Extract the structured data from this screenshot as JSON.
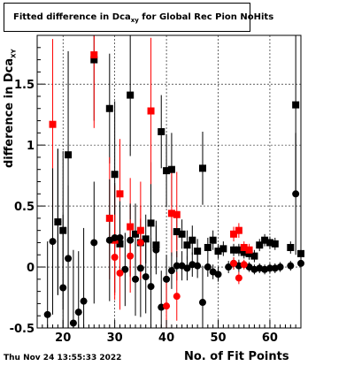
{
  "title": {
    "prefix": "Fitted difference in Dca",
    "sub": "xy",
    "suffix": " for Global Rec Pion NoHits"
  },
  "footer": "Thu Nov 24 13:55:33 2022",
  "colors": {
    "black": "#000000",
    "red": "#ff0000"
  },
  "chart_data": {
    "type": "scatter",
    "title": "Fitted difference in Dca xy for Global Rec Pion NoHits",
    "xlabel": "No. of Fit Points",
    "ylabel_prefix": "difference in Dca",
    "ylabel_sub": "XY",
    "xlim": [
      15,
      66
    ],
    "ylim": [
      -0.5,
      1.9
    ],
    "xticks": [
      20,
      30,
      40,
      50,
      60
    ],
    "yticks": [
      -0.5,
      0,
      0.5,
      1,
      1.5
    ],
    "xtick_labels": [
      "20",
      "30",
      "40",
      "50",
      "60"
    ],
    "ytick_labels": [
      "-0.5",
      "0",
      "0.5",
      "1",
      "1.5"
    ],
    "grid": true,
    "series": [
      {
        "color": "#000000",
        "marker": "square",
        "points": [
          [
            19,
            0.37
          ],
          [
            20,
            0.3
          ],
          [
            21,
            0.92
          ],
          [
            26,
            1.7
          ],
          [
            29,
            1.3
          ],
          [
            30,
            0.76
          ],
          [
            31,
            0.19
          ],
          [
            33,
            1.41
          ],
          [
            34,
            0.27
          ],
          [
            35,
            0.2
          ],
          [
            36,
            0.23
          ],
          [
            37,
            0.36
          ],
          [
            38,
            0.18
          ],
          [
            39,
            1.11
          ],
          [
            40,
            0.79
          ],
          [
            41,
            0.8
          ],
          [
            42,
            0.29
          ],
          [
            43,
            0.27
          ],
          [
            44,
            0.18
          ],
          [
            45,
            0.22
          ],
          [
            46,
            0.13
          ],
          [
            47,
            0.81
          ],
          [
            48,
            0.16
          ],
          [
            49,
            0.22
          ],
          [
            50,
            0.13
          ],
          [
            51,
            0.15
          ],
          [
            53,
            0.14
          ],
          [
            54,
            0.14
          ],
          [
            55,
            0.12
          ],
          [
            56,
            0.11
          ],
          [
            57,
            0.09
          ],
          [
            58,
            0.18
          ],
          [
            59,
            0.22
          ],
          [
            60,
            0.2
          ],
          [
            61,
            0.19
          ],
          [
            64,
            0.16
          ],
          [
            65,
            1.33
          ],
          [
            66,
            0.11
          ]
        ],
        "errors": [
          [
            19,
            0.6
          ],
          [
            20,
            0.65
          ],
          [
            21,
            0.85
          ],
          [
            26,
            0.5
          ],
          [
            29,
            0.45
          ],
          [
            30,
            0.6
          ],
          [
            31,
            0.25
          ],
          [
            33,
            0.5
          ],
          [
            34,
            0.25
          ],
          [
            35,
            0.2
          ],
          [
            36,
            0.2
          ],
          [
            37,
            0.5
          ],
          [
            38,
            0.2
          ],
          [
            39,
            0.3
          ],
          [
            40,
            0.3
          ],
          [
            41,
            0.3
          ],
          [
            42,
            0.15
          ],
          [
            43,
            0.12
          ],
          [
            44,
            0.12
          ],
          [
            45,
            0.12
          ],
          [
            46,
            0.1
          ],
          [
            47,
            0.3
          ],
          [
            48,
            0.08
          ],
          [
            49,
            0.08
          ],
          [
            50,
            0.06
          ],
          [
            51,
            0.06
          ],
          [
            53,
            0.05
          ],
          [
            54,
            0.05
          ],
          [
            55,
            0.05
          ],
          [
            56,
            0.05
          ],
          [
            57,
            0.05
          ],
          [
            58,
            0.05
          ],
          [
            59,
            0.05
          ],
          [
            60,
            0.05
          ],
          [
            61,
            0.05
          ],
          [
            64,
            0.05
          ],
          [
            65,
            0.7
          ],
          [
            66,
            0.05
          ]
        ]
      },
      {
        "color": "#ff0000",
        "marker": "square",
        "points": [
          [
            18,
            1.17
          ],
          [
            26,
            1.74
          ],
          [
            29,
            0.4
          ],
          [
            30,
            0.22
          ],
          [
            31,
            0.6
          ],
          [
            33,
            0.33
          ],
          [
            35,
            0.3
          ],
          [
            37,
            1.28
          ],
          [
            41,
            0.44
          ],
          [
            42,
            0.43
          ],
          [
            53,
            0.27
          ],
          [
            54,
            0.3
          ],
          [
            55,
            0.16
          ],
          [
            56,
            0.14
          ]
        ],
        "errors": [
          [
            18,
            0.7
          ],
          [
            26,
            0.6
          ],
          [
            29,
            0.5
          ],
          [
            30,
            0.45
          ],
          [
            31,
            0.45
          ],
          [
            33,
            0.4
          ],
          [
            35,
            0.4
          ],
          [
            37,
            0.6
          ],
          [
            41,
            0.35
          ],
          [
            42,
            0.35
          ],
          [
            53,
            0.06
          ],
          [
            54,
            0.06
          ],
          [
            55,
            0.05
          ],
          [
            56,
            0.05
          ]
        ]
      },
      {
        "color": "#000000",
        "marker": "circle",
        "points": [
          [
            17,
            -0.39
          ],
          [
            18,
            0.21
          ],
          [
            19,
            0.37
          ],
          [
            20,
            -0.17
          ],
          [
            21,
            0.07
          ],
          [
            22,
            -0.46
          ],
          [
            23,
            -0.37
          ],
          [
            24,
            -0.28
          ],
          [
            26,
            0.2
          ],
          [
            29,
            0.22
          ],
          [
            30,
            0.24
          ],
          [
            31,
            0.24
          ],
          [
            32,
            -0.02
          ],
          [
            33,
            0.22
          ],
          [
            34,
            -0.1
          ],
          [
            35,
            -0.01
          ],
          [
            36,
            -0.08
          ],
          [
            37,
            -0.16
          ],
          [
            38,
            0.14
          ],
          [
            39,
            -0.33
          ],
          [
            40,
            -0.1
          ],
          [
            41,
            -0.03
          ],
          [
            42,
            0.01
          ],
          [
            43,
            0.01
          ],
          [
            44,
            -0.01
          ],
          [
            45,
            0.02
          ],
          [
            46,
            0.01
          ],
          [
            47,
            -0.29
          ],
          [
            48,
            0.0
          ],
          [
            49,
            -0.04
          ],
          [
            50,
            -0.06
          ],
          [
            52,
            0.0
          ],
          [
            53,
            0.03
          ],
          [
            54,
            0.01
          ],
          [
            56,
            0.0
          ],
          [
            57,
            -0.02
          ],
          [
            58,
            -0.01
          ],
          [
            59,
            -0.02
          ],
          [
            60,
            -0.01
          ],
          [
            61,
            -0.01
          ],
          [
            62,
            0.0
          ],
          [
            64,
            0.01
          ],
          [
            65,
            0.6
          ],
          [
            66,
            0.03
          ]
        ],
        "errors": [
          [
            17,
            0.6
          ],
          [
            18,
            0.6
          ],
          [
            19,
            0.6
          ],
          [
            20,
            0.6
          ],
          [
            21,
            0.6
          ],
          [
            22,
            0.6
          ],
          [
            23,
            0.5
          ],
          [
            24,
            0.6
          ],
          [
            26,
            0.5
          ],
          [
            29,
            0.5
          ],
          [
            30,
            0.45
          ],
          [
            31,
            0.3
          ],
          [
            32,
            0.3
          ],
          [
            33,
            0.3
          ],
          [
            34,
            0.3
          ],
          [
            35,
            0.4
          ],
          [
            36,
            0.3
          ],
          [
            37,
            0.4
          ],
          [
            38,
            0.2
          ],
          [
            39,
            0.3
          ],
          [
            40,
            0.2
          ],
          [
            41,
            0.15
          ],
          [
            42,
            0.12
          ],
          [
            43,
            0.12
          ],
          [
            44,
            0.1
          ],
          [
            45,
            0.1
          ],
          [
            46,
            0.1
          ],
          [
            47,
            0.3
          ],
          [
            48,
            0.08
          ],
          [
            49,
            0.06
          ],
          [
            50,
            0.06
          ],
          [
            52,
            0.05
          ],
          [
            53,
            0.05
          ],
          [
            54,
            0.05
          ],
          [
            56,
            0.04
          ],
          [
            57,
            0.04
          ],
          [
            58,
            0.04
          ],
          [
            59,
            0.04
          ],
          [
            60,
            0.04
          ],
          [
            61,
            0.04
          ],
          [
            62,
            0.04
          ],
          [
            64,
            0.04
          ],
          [
            65,
            0.5
          ],
          [
            66,
            0.04
          ]
        ]
      },
      {
        "color": "#ff0000",
        "marker": "circle",
        "points": [
          [
            30,
            0.08
          ],
          [
            31,
            -0.05
          ],
          [
            33,
            0.09
          ],
          [
            35,
            0.2
          ],
          [
            40,
            -0.32
          ],
          [
            42,
            -0.24
          ],
          [
            53,
            0.03
          ],
          [
            54,
            -0.09
          ],
          [
            55,
            0.02
          ]
        ],
        "errors": [
          [
            30,
            0.35
          ],
          [
            31,
            0.3
          ],
          [
            33,
            0.3
          ],
          [
            35,
            0.3
          ],
          [
            40,
            0.25
          ],
          [
            42,
            0.2
          ],
          [
            53,
            0.05
          ],
          [
            54,
            0.05
          ],
          [
            55,
            0.04
          ]
        ]
      }
    ]
  }
}
